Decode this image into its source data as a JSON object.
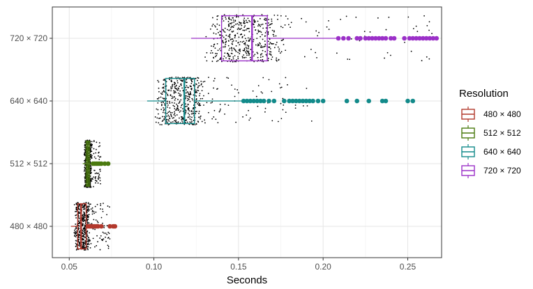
{
  "chart_data": {
    "type": "boxplot-jitter",
    "xlabel": "Seconds",
    "ylabel": "",
    "xlim": [
      0.04,
      0.27
    ],
    "xticks": [
      0.05,
      0.1,
      0.15,
      0.2,
      0.25
    ],
    "xtick_labels": [
      "0.05",
      "0.10",
      "0.15",
      "0.20",
      "0.25"
    ],
    "grid": true,
    "legend": {
      "title": "Resolution",
      "position": "right"
    },
    "categories": [
      "480 × 480",
      "512 × 512",
      "640 × 640",
      "720 × 720"
    ],
    "series": [
      {
        "name": "480 × 480",
        "color": "#B2382C",
        "box": {
          "whisker_low": 0.051,
          "q1": 0.055,
          "median": 0.057,
          "q3": 0.06,
          "whisker_high": 0.066
        },
        "jitter_range": [
          0.052,
          0.074
        ],
        "outliers": [
          0.061,
          0.062,
          0.063,
          0.064,
          0.065,
          0.066,
          0.067,
          0.069,
          0.074,
          0.076,
          0.077
        ]
      },
      {
        "name": "512 × 512",
        "color": "#4B7A0F",
        "box": {
          "whisker_low": 0.058,
          "q1": 0.06,
          "median": 0.061,
          "q3": 0.062,
          "whisker_high": 0.064
        },
        "jitter_range": [
          0.058,
          0.069
        ],
        "outliers": [
          0.064,
          0.065,
          0.066,
          0.067,
          0.068,
          0.069,
          0.071,
          0.073
        ]
      },
      {
        "name": "640 × 640",
        "color": "#128A8A",
        "box": {
          "whisker_low": 0.096,
          "q1": 0.107,
          "median": 0.118,
          "q3": 0.124,
          "whisker_high": 0.152
        },
        "jitter_range": [
          0.095,
          0.195
        ],
        "outliers": [
          0.153,
          0.155,
          0.157,
          0.159,
          0.161,
          0.163,
          0.165,
          0.168,
          0.171,
          0.177,
          0.18,
          0.182,
          0.184,
          0.186,
          0.188,
          0.19,
          0.192,
          0.194,
          0.197,
          0.2,
          0.214,
          0.22,
          0.227,
          0.235,
          0.237,
          0.25,
          0.253
        ]
      },
      {
        "name": "720 × 720",
        "color": "#9B30C8",
        "box": {
          "whisker_low": 0.122,
          "q1": 0.14,
          "median": 0.158,
          "q3": 0.167,
          "whisker_high": 0.208
        },
        "jitter_range": [
          0.121,
          0.265
        ],
        "outliers": [
          0.209,
          0.212,
          0.215,
          0.22,
          0.222,
          0.225,
          0.227,
          0.229,
          0.231,
          0.233,
          0.235,
          0.237,
          0.24,
          0.242,
          0.248,
          0.251,
          0.253,
          0.255,
          0.257,
          0.259,
          0.261,
          0.263,
          0.265,
          0.267
        ]
      }
    ]
  }
}
